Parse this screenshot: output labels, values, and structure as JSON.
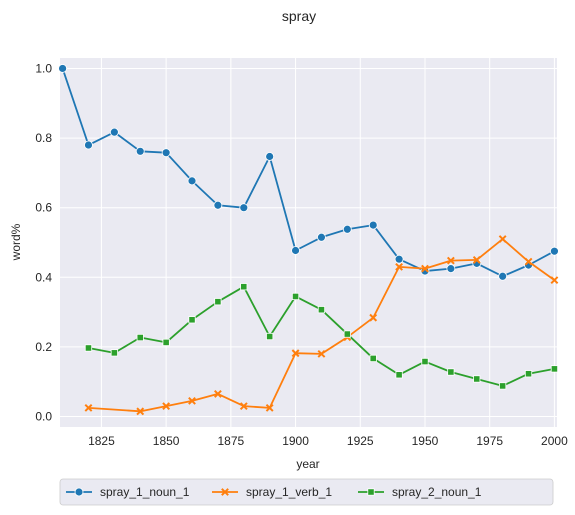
{
  "chart_data": {
    "type": "line",
    "title": "spray",
    "xlabel": "year",
    "ylabel": "word%",
    "xlim": [
      1809,
      2001
    ],
    "ylim": [
      -0.03,
      1.03
    ],
    "xticks": [
      1825,
      1850,
      1875,
      1900,
      1925,
      1950,
      1975,
      2000
    ],
    "yticks": [
      0.0,
      0.2,
      0.4,
      0.6,
      0.8,
      1.0
    ],
    "xtick_labels": [
      "1825",
      "1850",
      "1875",
      "1900",
      "1925",
      "1950",
      "1975",
      "2000"
    ],
    "ytick_labels": [
      "0.0",
      "0.2",
      "0.4",
      "0.6",
      "0.8",
      "1.0"
    ],
    "grid": true,
    "legend_position": "bottom-center",
    "series": [
      {
        "name": "spray_1_noun_1",
        "color": "#1f77b4",
        "marker": "circle",
        "x": [
          1810,
          1820,
          1830,
          1840,
          1850,
          1860,
          1870,
          1880,
          1890,
          1900,
          1910,
          1920,
          1930,
          1940,
          1950,
          1960,
          1970,
          1980,
          1990,
          2000
        ],
        "values": [
          1.0,
          0.78,
          0.817,
          0.762,
          0.758,
          0.677,
          0.607,
          0.6,
          0.747,
          0.477,
          0.515,
          0.538,
          0.55,
          0.452,
          0.418,
          0.425,
          0.44,
          0.403,
          0.435,
          0.475
        ]
      },
      {
        "name": "spray_1_verb_1",
        "color": "#ff7f0e",
        "marker": "x",
        "x": [
          1820,
          1840,
          1850,
          1860,
          1870,
          1880,
          1890,
          1900,
          1910,
          1920,
          1930,
          1940,
          1950,
          1960,
          1970,
          1980,
          1990,
          2000
        ],
        "values": [
          0.025,
          0.015,
          0.03,
          0.045,
          0.065,
          0.03,
          0.025,
          0.182,
          0.18,
          0.228,
          0.284,
          0.43,
          0.425,
          0.448,
          0.45,
          0.51,
          0.445,
          0.392
        ]
      },
      {
        "name": "spray_2_noun_1",
        "color": "#2ca02c",
        "marker": "square",
        "x": [
          1820,
          1830,
          1840,
          1850,
          1860,
          1870,
          1880,
          1890,
          1900,
          1910,
          1920,
          1930,
          1940,
          1950,
          1960,
          1970,
          1980,
          1990,
          2000
        ],
        "values": [
          0.197,
          0.183,
          0.227,
          0.213,
          0.278,
          0.33,
          0.373,
          0.23,
          0.345,
          0.307,
          0.237,
          0.167,
          0.12,
          0.158,
          0.128,
          0.108,
          0.088,
          0.123,
          0.137
        ]
      }
    ]
  }
}
